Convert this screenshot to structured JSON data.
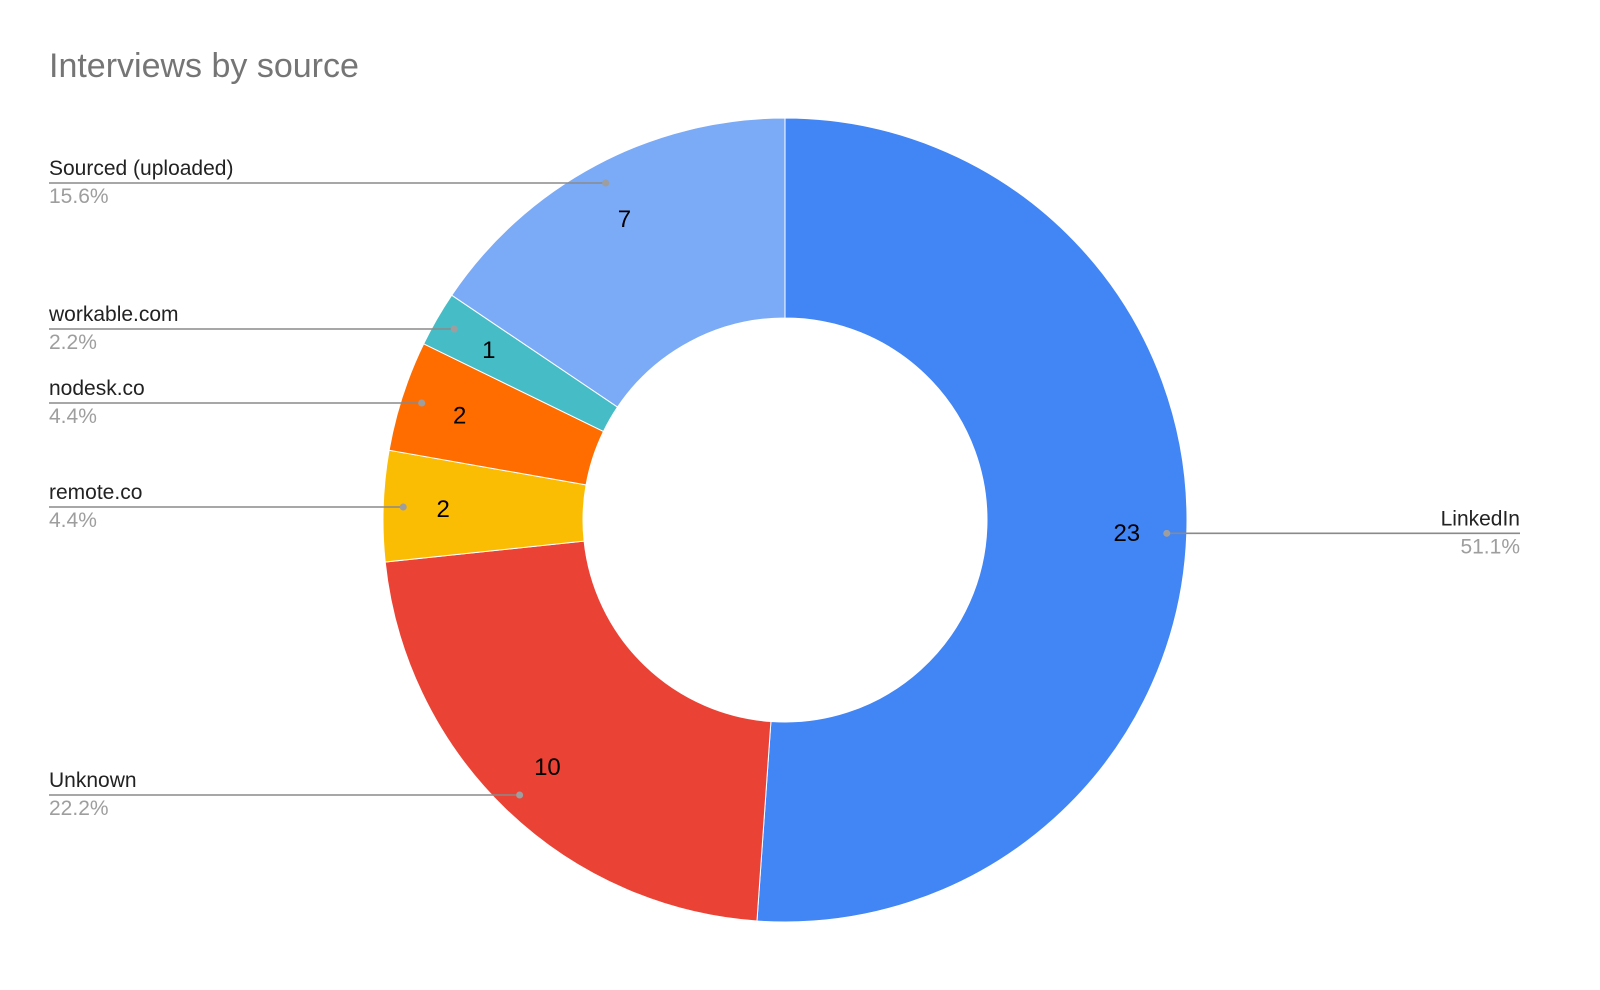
{
  "chart_data": {
    "type": "pie",
    "donut": true,
    "title": "Interviews by source",
    "slices": [
      {
        "label": "LinkedIn",
        "value": 23,
        "percent": "51.1%",
        "color": "#4285f4"
      },
      {
        "label": "Unknown",
        "value": 10,
        "percent": "22.2%",
        "color": "#ea4335"
      },
      {
        "label": "remote.co",
        "value": 2,
        "percent": "4.4%",
        "color": "#fbbc04"
      },
      {
        "label": "nodesk.co",
        "value": 2,
        "percent": "4.4%",
        "color": "#ff6d01"
      },
      {
        "label": "workable.com",
        "value": 1,
        "percent": "2.2%",
        "color": "#46bdc6"
      },
      {
        "label": "Sourced (uploaded)",
        "value": 7,
        "percent": "15.6%",
        "color": "#7baaf7"
      }
    ]
  }
}
